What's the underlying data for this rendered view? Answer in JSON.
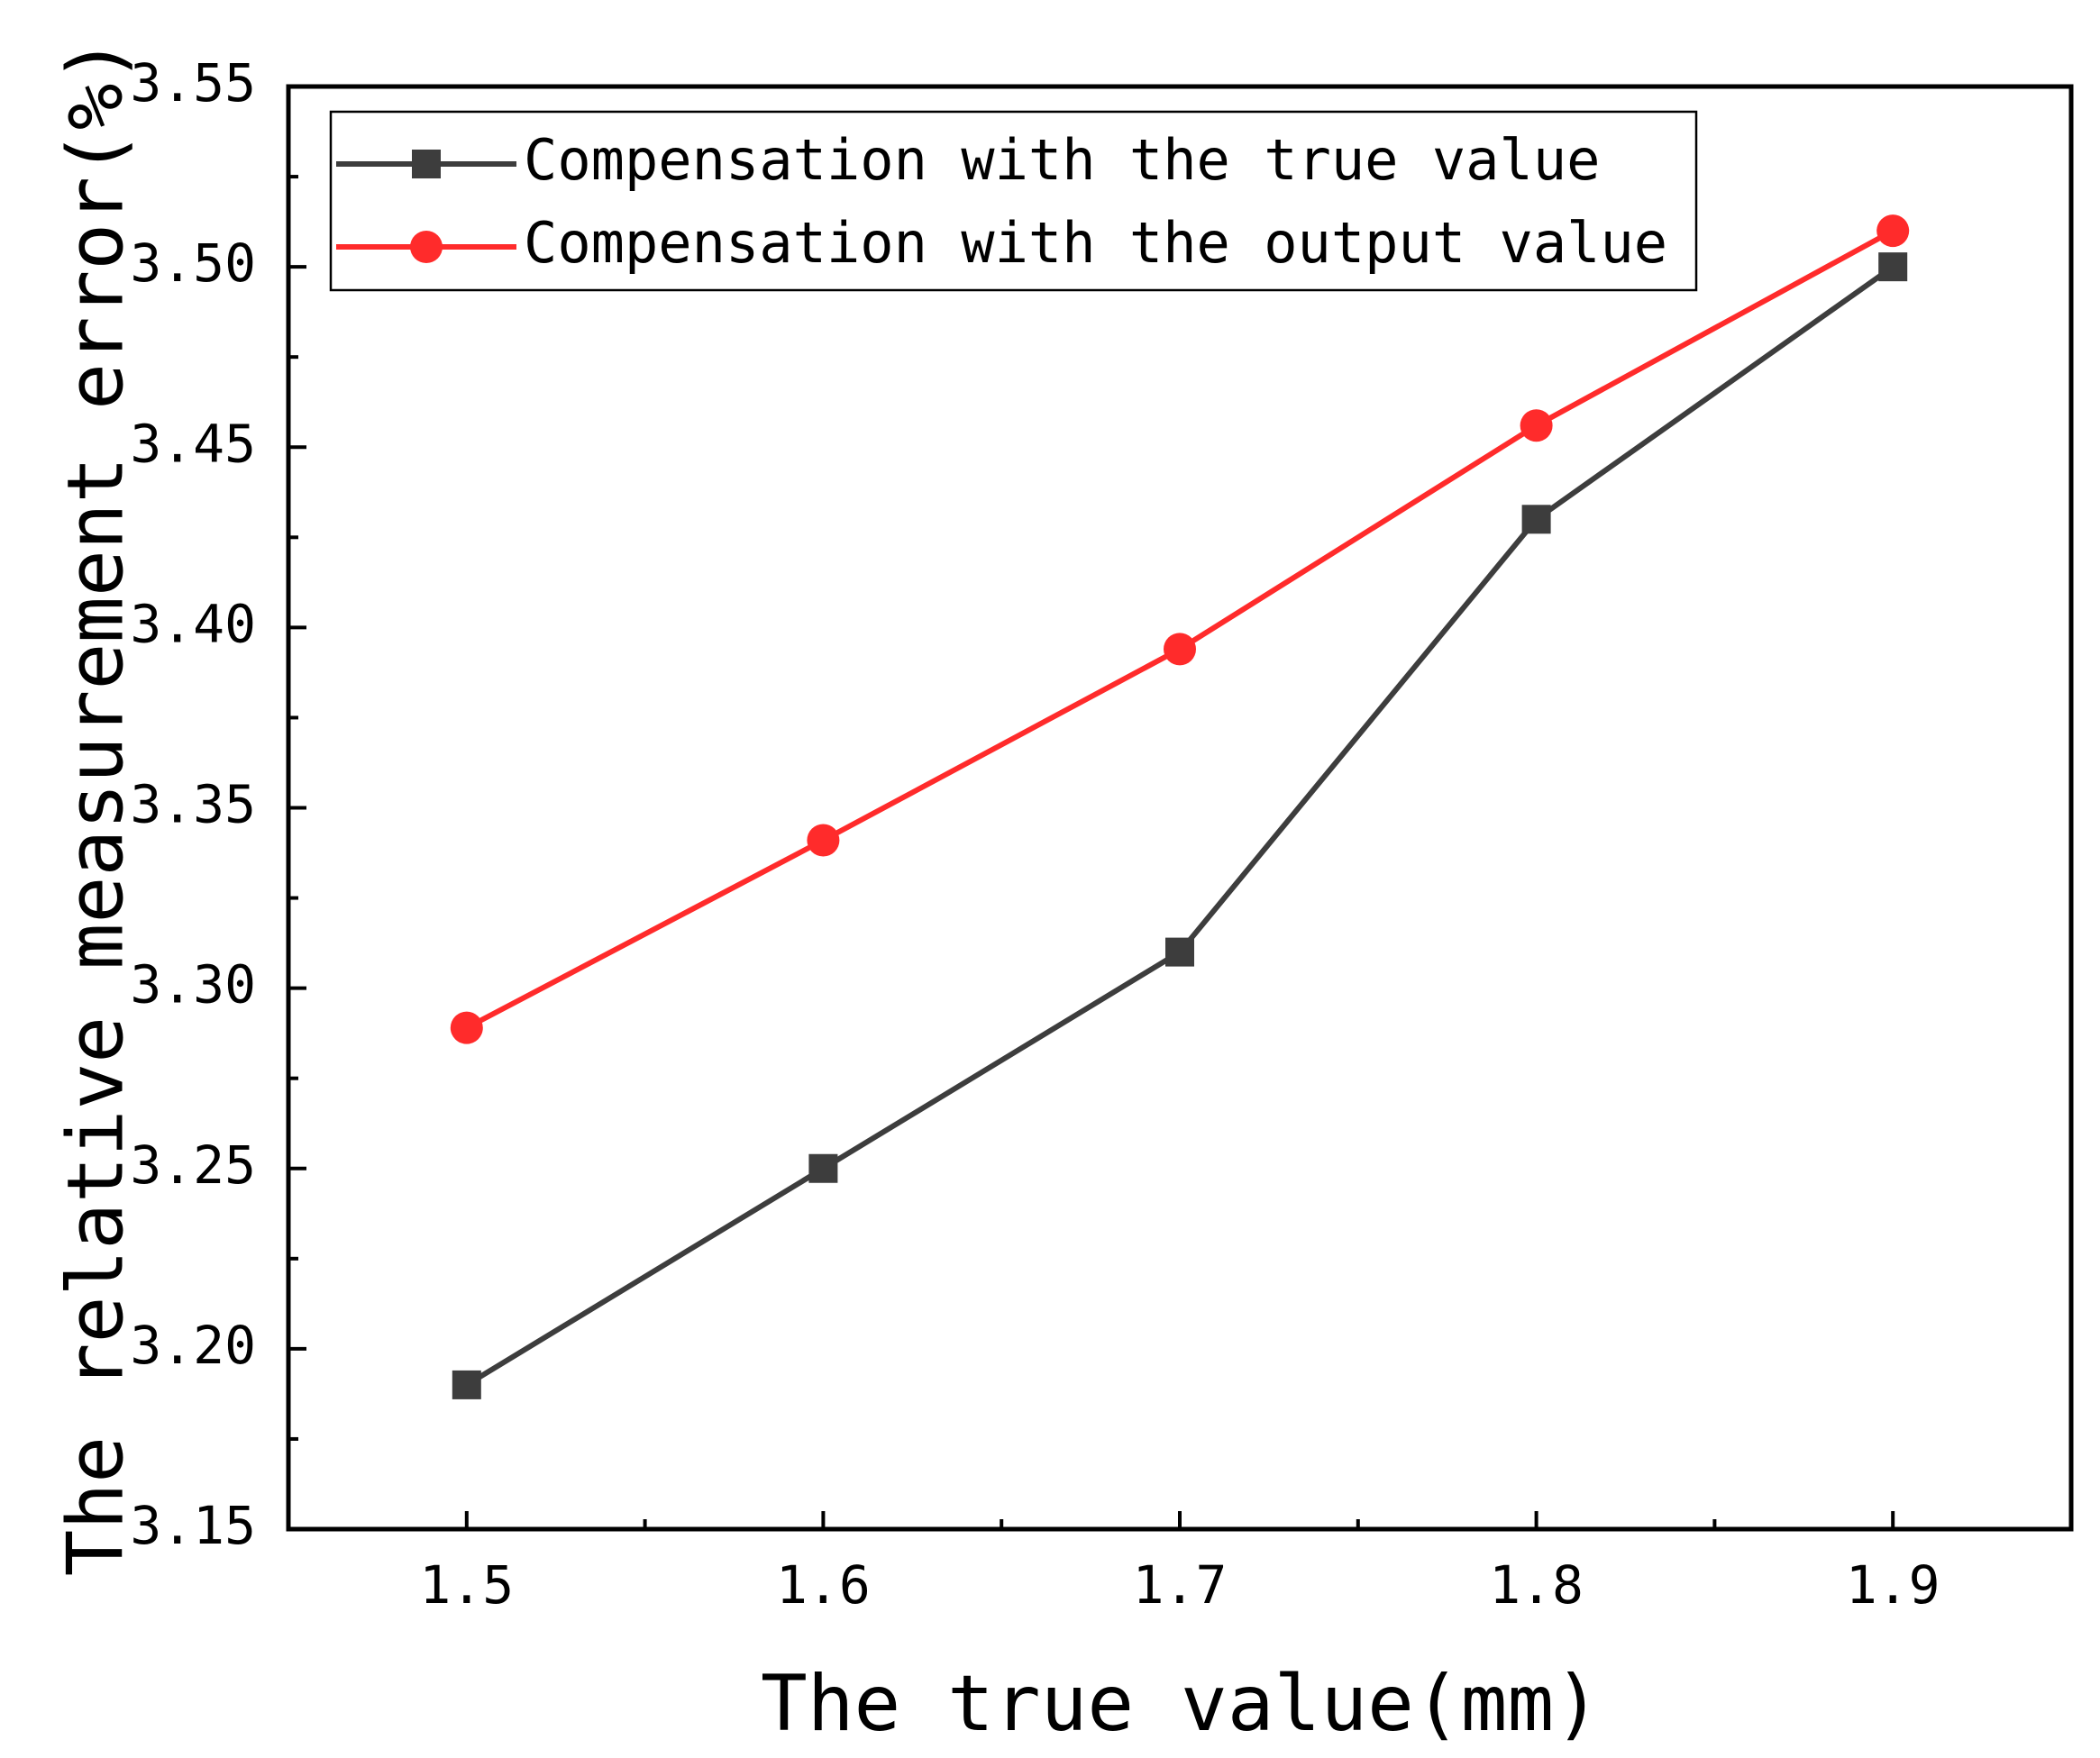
{
  "chart_data": {
    "type": "line",
    "title": "",
    "xlabel": "The true value(mm)",
    "ylabel": "The relative measurement error(%)",
    "x": [
      1.5,
      1.6,
      1.7,
      1.8,
      1.9
    ],
    "x_tick_labels": [
      "1.5",
      "1.6",
      "1.7",
      "1.8",
      "1.9"
    ],
    "xlim": [
      1.45,
      1.95
    ],
    "y_ticks": [
      3.15,
      3.2,
      3.25,
      3.3,
      3.35,
      3.4,
      3.45,
      3.5,
      3.55
    ],
    "y_tick_labels": [
      "3.15",
      "3.20",
      "3.25",
      "3.30",
      "3.35",
      "3.40",
      "3.45",
      "3.50",
      "3.55"
    ],
    "ylim": [
      3.15,
      3.55
    ],
    "grid": false,
    "legend_position": "top",
    "series": [
      {
        "name": "Compensation with the true value",
        "values": [
          3.19,
          3.25,
          3.31,
          3.43,
          3.5
        ],
        "color": "#3d3d3d",
        "marker": "square"
      },
      {
        "name": "Compensation with the output value",
        "values": [
          3.289,
          3.341,
          3.394,
          3.456,
          3.51
        ],
        "color": "#ff2b2b",
        "marker": "circle"
      }
    ]
  }
}
